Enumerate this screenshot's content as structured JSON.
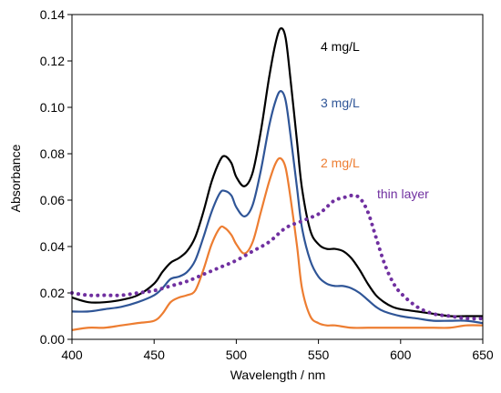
{
  "chart_data": {
    "type": "line",
    "title": "",
    "xlabel": "Wavelength / nm",
    "ylabel": "Absorbance",
    "xlim": [
      400,
      650
    ],
    "ylim": [
      0,
      0.14
    ],
    "xticks": [
      "400",
      "450",
      "500",
      "550",
      "600",
      "650"
    ],
    "yticks": [
      "0.00",
      "0.02",
      "0.04",
      "0.06",
      "0.08",
      "0.10",
      "0.12",
      "0.14"
    ],
    "grid": false,
    "legend": "inline labels",
    "series": [
      {
        "name": "4 mg/L",
        "color": "#000000",
        "style": "solid",
        "x": [
          400,
          410,
          420,
          430,
          440,
          450,
          455,
          460,
          465,
          470,
          475,
          480,
          485,
          490,
          493,
          497,
          500,
          505,
          510,
          515,
          520,
          524,
          527,
          530,
          533,
          537,
          540,
          545,
          550,
          555,
          560,
          565,
          570,
          575,
          580,
          585,
          590,
          595,
          600,
          610,
          620,
          630,
          640,
          650
        ],
        "y": [
          0.018,
          0.016,
          0.016,
          0.017,
          0.019,
          0.024,
          0.029,
          0.033,
          0.035,
          0.038,
          0.044,
          0.055,
          0.068,
          0.077,
          0.079,
          0.076,
          0.07,
          0.066,
          0.072,
          0.09,
          0.113,
          0.128,
          0.134,
          0.13,
          0.112,
          0.085,
          0.065,
          0.047,
          0.041,
          0.039,
          0.039,
          0.038,
          0.035,
          0.03,
          0.024,
          0.019,
          0.016,
          0.014,
          0.013,
          0.012,
          0.011,
          0.01,
          0.01,
          0.01
        ]
      },
      {
        "name": "3 mg/L",
        "color": "#2f5597",
        "style": "solid",
        "x": [
          400,
          410,
          420,
          430,
          440,
          450,
          455,
          460,
          465,
          470,
          475,
          480,
          485,
          490,
          493,
          497,
          500,
          505,
          510,
          515,
          520,
          524,
          527,
          530,
          533,
          537,
          540,
          545,
          550,
          555,
          560,
          565,
          570,
          575,
          580,
          585,
          590,
          600,
          610,
          620,
          630,
          640,
          650
        ],
        "y": [
          0.012,
          0.012,
          0.013,
          0.014,
          0.016,
          0.019,
          0.022,
          0.026,
          0.027,
          0.029,
          0.034,
          0.044,
          0.055,
          0.063,
          0.064,
          0.062,
          0.057,
          0.053,
          0.058,
          0.073,
          0.092,
          0.103,
          0.107,
          0.103,
          0.088,
          0.065,
          0.048,
          0.034,
          0.027,
          0.024,
          0.023,
          0.023,
          0.022,
          0.02,
          0.017,
          0.014,
          0.012,
          0.01,
          0.009,
          0.008,
          0.008,
          0.008,
          0.007
        ]
      },
      {
        "name": "2 mg/L",
        "color": "#ed7d31",
        "style": "solid",
        "x": [
          400,
          410,
          420,
          430,
          440,
          450,
          455,
          460,
          465,
          470,
          475,
          480,
          485,
          490,
          493,
          497,
          500,
          505,
          510,
          515,
          520,
          524,
          527,
          530,
          533,
          537,
          540,
          545,
          550,
          555,
          560,
          570,
          580,
          590,
          600,
          610,
          620,
          630,
          640,
          650
        ],
        "y": [
          0.004,
          0.005,
          0.005,
          0.006,
          0.007,
          0.008,
          0.011,
          0.016,
          0.018,
          0.019,
          0.021,
          0.03,
          0.041,
          0.048,
          0.048,
          0.045,
          0.041,
          0.037,
          0.042,
          0.055,
          0.068,
          0.076,
          0.078,
          0.074,
          0.061,
          0.04,
          0.022,
          0.01,
          0.007,
          0.006,
          0.006,
          0.005,
          0.005,
          0.005,
          0.005,
          0.005,
          0.005,
          0.005,
          0.006,
          0.006
        ]
      },
      {
        "name": "thin layer",
        "color": "#7030a0",
        "style": "dotted",
        "x": [
          400,
          410,
          420,
          430,
          440,
          450,
          460,
          470,
          480,
          490,
          500,
          510,
          520,
          530,
          540,
          550,
          555,
          560,
          565,
          570,
          575,
          580,
          585,
          590,
          595,
          600,
          610,
          620,
          630,
          640,
          650
        ],
        "y": [
          0.02,
          0.019,
          0.019,
          0.019,
          0.02,
          0.021,
          0.023,
          0.025,
          0.028,
          0.031,
          0.034,
          0.038,
          0.042,
          0.048,
          0.051,
          0.054,
          0.057,
          0.06,
          0.061,
          0.062,
          0.061,
          0.055,
          0.044,
          0.033,
          0.025,
          0.02,
          0.014,
          0.011,
          0.01,
          0.009,
          0.009
        ]
      }
    ]
  }
}
